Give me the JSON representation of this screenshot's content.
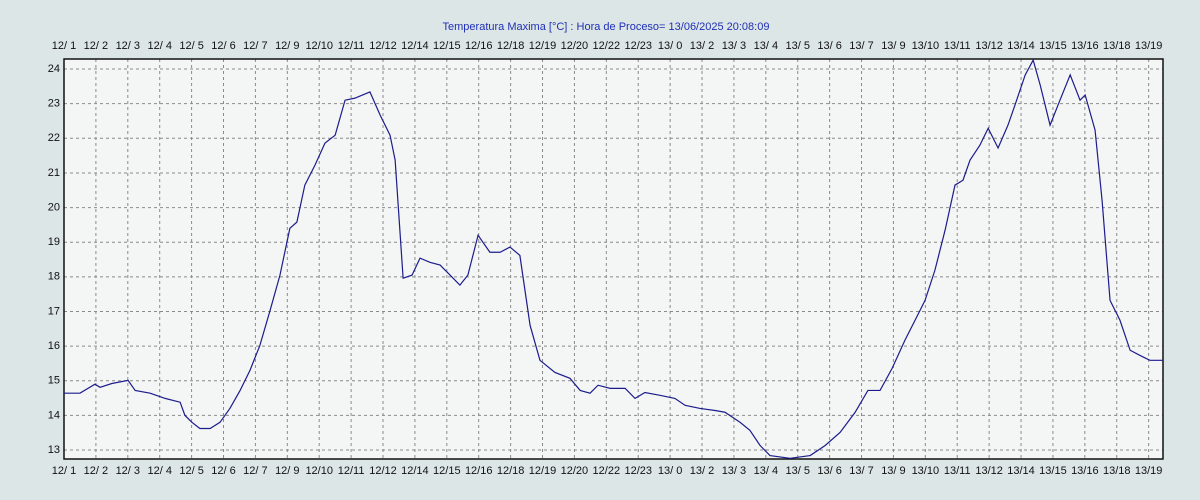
{
  "chart_data": {
    "type": "line",
    "title": "Temperatura Maxima [°C] : Hora de Proceso= 13/06/2025 20:08:09",
    "xlim": [
      0,
      34.45
    ],
    "xticks": [
      {
        "value": 0,
        "label": "12/ 1"
      },
      {
        "value": 1,
        "label": "12/ 2"
      },
      {
        "value": 2,
        "label": "12/ 3"
      },
      {
        "value": 3,
        "label": "12/ 4"
      },
      {
        "value": 4,
        "label": "12/ 5"
      },
      {
        "value": 5,
        "label": "12/ 6"
      },
      {
        "value": 6,
        "label": "12/ 7"
      },
      {
        "value": 7,
        "label": "12/ 9"
      },
      {
        "value": 8,
        "label": "12/10"
      },
      {
        "value": 9,
        "label": "12/11"
      },
      {
        "value": 10,
        "label": "12/12"
      },
      {
        "value": 11,
        "label": "12/14"
      },
      {
        "value": 12,
        "label": "12/15"
      },
      {
        "value": 13,
        "label": "12/16"
      },
      {
        "value": 14,
        "label": "12/18"
      },
      {
        "value": 15,
        "label": "12/19"
      },
      {
        "value": 16,
        "label": "12/20"
      },
      {
        "value": 17,
        "label": "12/22"
      },
      {
        "value": 18,
        "label": "12/23"
      },
      {
        "value": 19,
        "label": "13/ 0"
      },
      {
        "value": 20,
        "label": "13/ 2"
      },
      {
        "value": 21,
        "label": "13/ 3"
      },
      {
        "value": 22,
        "label": "13/ 4"
      },
      {
        "value": 23,
        "label": "13/ 5"
      },
      {
        "value": 24,
        "label": "13/ 6"
      },
      {
        "value": 25,
        "label": "13/ 7"
      },
      {
        "value": 26,
        "label": "13/ 9"
      },
      {
        "value": 27,
        "label": "13/10"
      },
      {
        "value": 28,
        "label": "13/11"
      },
      {
        "value": 29,
        "label": "13/12"
      },
      {
        "value": 30,
        "label": "13/14"
      },
      {
        "value": 31,
        "label": "13/15"
      },
      {
        "value": 32,
        "label": "13/16"
      },
      {
        "value": 33,
        "label": "13/18"
      },
      {
        "value": 34,
        "label": "13/19"
      }
    ],
    "ylim": [
      12.74,
      24.29
    ],
    "yticks": [
      13,
      14,
      15,
      16,
      17,
      18,
      19,
      20,
      21,
      22,
      23,
      24
    ],
    "grid": true,
    "series": [
      {
        "color": "#1c1c8c",
        "x": [
          0,
          0.5,
          0.97,
          1.13,
          1.5,
          2.01,
          2.23,
          2.7,
          3.17,
          3.64,
          3.79,
          4.01,
          4.26,
          4.58,
          4.89,
          5.2,
          5.52,
          5.83,
          6.14,
          6.46,
          6.77,
          7.08,
          7.3,
          7.55,
          7.87,
          8.18,
          8.5,
          8.81,
          9.12,
          9.59,
          9.91,
          10.22,
          10.38,
          10.63,
          10.91,
          11.16,
          11.47,
          11.79,
          12.1,
          12.41,
          12.66,
          12.98,
          13.35,
          13.67,
          13.98,
          14.29,
          14.61,
          14.92,
          15.39,
          15.86,
          16.18,
          16.49,
          16.74,
          17.12,
          17.59,
          17.9,
          18.21,
          18.68,
          19.15,
          19.47,
          19.94,
          20.41,
          20.72,
          21.19,
          21.5,
          21.82,
          22.13,
          22.76,
          23.39,
          23.86,
          24.33,
          24.8,
          25.2,
          25.58,
          25.96,
          26.36,
          26.68,
          26.99,
          27.3,
          27.62,
          27.93,
          28.18,
          28.4,
          28.71,
          28.97,
          29.28,
          29.59,
          29.81,
          30.13,
          30.38,
          30.6,
          30.91,
          31.22,
          31.54,
          31.85,
          32.01,
          32.32,
          32.54,
          32.79,
          33.1,
          33.42,
          33.73,
          34.04,
          34.45
        ],
        "values": [
          14.64,
          14.64,
          14.9,
          14.81,
          14.92,
          15.01,
          14.72,
          14.64,
          14.49,
          14.38,
          14.0,
          13.8,
          13.62,
          13.62,
          13.8,
          14.2,
          14.72,
          15.3,
          16.02,
          17.03,
          18.05,
          19.4,
          19.58,
          20.65,
          21.23,
          21.86,
          22.09,
          23.1,
          23.16,
          23.34,
          22.67,
          22.09,
          21.37,
          17.96,
          18.05,
          18.54,
          18.42,
          18.34,
          18.05,
          17.76,
          18.05,
          19.2,
          18.71,
          18.71,
          18.86,
          18.62,
          16.6,
          15.59,
          15.24,
          15.07,
          14.72,
          14.64,
          14.87,
          14.78,
          14.78,
          14.49,
          14.66,
          14.58,
          14.49,
          14.29,
          14.2,
          14.14,
          14.09,
          13.8,
          13.57,
          13.13,
          12.84,
          12.76,
          12.84,
          13.13,
          13.51,
          14.09,
          14.72,
          14.72,
          15.36,
          16.17,
          16.75,
          17.32,
          18.19,
          19.35,
          20.65,
          20.79,
          21.37,
          21.8,
          22.29,
          21.72,
          22.38,
          22.96,
          23.83,
          24.26,
          23.54,
          22.38,
          23.1,
          23.83,
          23.1,
          23.25,
          22.24,
          20.21,
          17.32,
          16.75,
          15.88,
          15.73,
          15.59,
          15.59
        ]
      }
    ]
  }
}
